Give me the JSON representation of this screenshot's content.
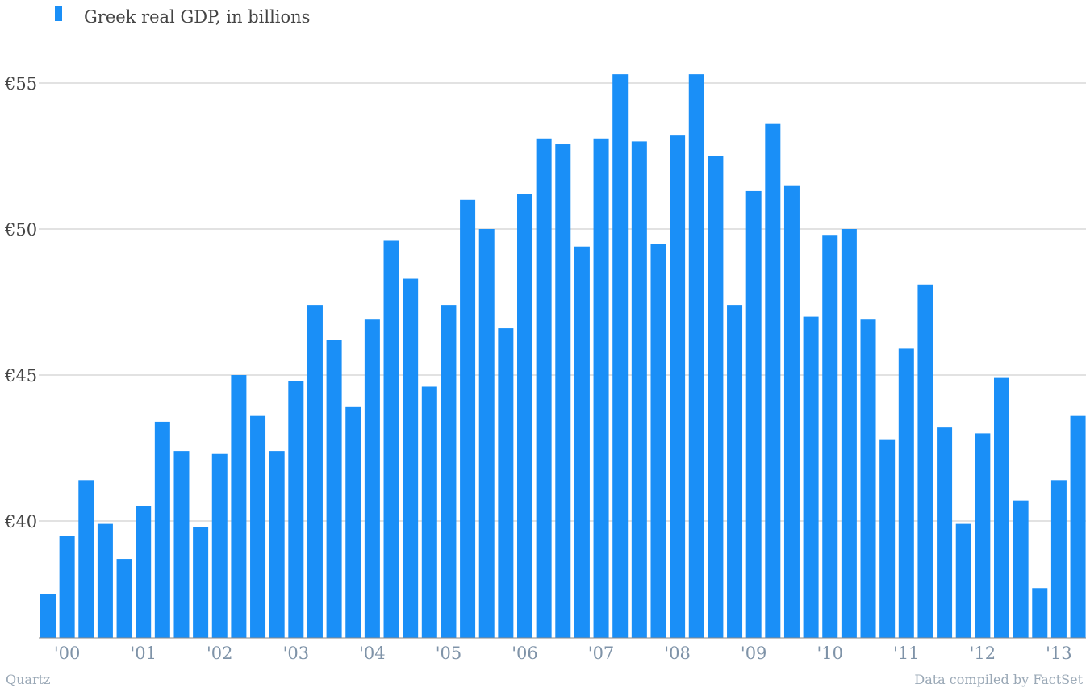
{
  "chart_data": {
    "type": "bar",
    "legend": [
      {
        "name": "Greek real GDP, in billions",
        "color": "#1a8ff7"
      }
    ],
    "legend_position": "top-left",
    "grid": true,
    "yticks": [
      {
        "value": 40,
        "label": "€40"
      },
      {
        "value": 45,
        "label": "€45"
      },
      {
        "value": 50,
        "label": "€50"
      },
      {
        "value": 55,
        "label": "€55"
      }
    ],
    "xticks": [
      {
        "index": 1,
        "label": "'00"
      },
      {
        "index": 5,
        "label": "'01"
      },
      {
        "index": 9,
        "label": "'02"
      },
      {
        "index": 13,
        "label": "'03"
      },
      {
        "index": 17,
        "label": "'04"
      },
      {
        "index": 21,
        "label": "'05"
      },
      {
        "index": 25,
        "label": "'06"
      },
      {
        "index": 29,
        "label": "'07"
      },
      {
        "index": 33,
        "label": "'08"
      },
      {
        "index": 37,
        "label": "'09"
      },
      {
        "index": 41,
        "label": "'10"
      },
      {
        "index": 45,
        "label": "'11"
      },
      {
        "index": 49,
        "label": "'12"
      },
      {
        "index": 53,
        "label": "'13"
      }
    ],
    "ylim": [
      36,
      57
    ],
    "series": [
      {
        "name": "Greek real GDP, in billions",
        "color": "#1a8ff7",
        "values": [
          37.5,
          39.5,
          41.4,
          39.9,
          38.7,
          40.5,
          43.4,
          42.4,
          39.8,
          42.3,
          45.0,
          43.6,
          42.4,
          44.8,
          47.4,
          46.2,
          43.9,
          46.9,
          49.6,
          48.3,
          44.6,
          47.4,
          51.0,
          50.0,
          46.6,
          51.2,
          53.1,
          52.9,
          49.4,
          53.1,
          55.3,
          53.0,
          49.5,
          53.2,
          55.3,
          52.5,
          47.4,
          51.3,
          53.6,
          51.5,
          47.0,
          49.8,
          50.0,
          46.9,
          42.8,
          45.9,
          48.1,
          43.2,
          39.9,
          43.0,
          44.9,
          40.7,
          37.7,
          41.4,
          43.6
        ]
      }
    ]
  },
  "footer": {
    "source_left": "Quartz",
    "source_right": "Data compiled by FactSet"
  }
}
